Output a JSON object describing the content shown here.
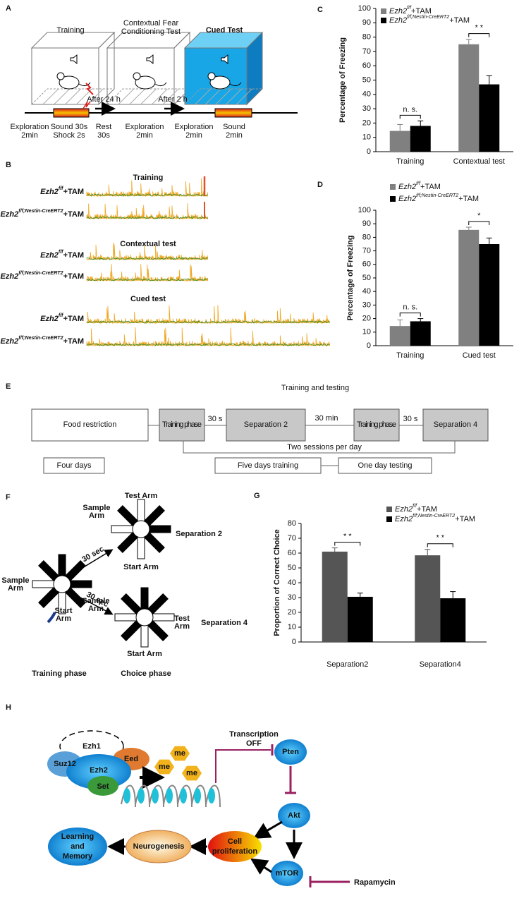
{
  "figure": {
    "panel_labels": [
      "A",
      "B",
      "C",
      "D",
      "E",
      "F",
      "G",
      "H"
    ],
    "a": {
      "boxes": [
        [
          "Training"
        ],
        [
          "Contextual Fear",
          "Conditioning Test"
        ],
        [
          "Cued Test"
        ]
      ],
      "timeline": [
        [
          "Exploration",
          "2min"
        ],
        [
          "Sound 30s",
          "Shock 2s"
        ],
        [
          "Rest",
          "30s"
        ],
        [
          "Exploration",
          "2min"
        ],
        [
          "Exploration",
          "2min"
        ],
        [
          "Sound",
          "2min"
        ]
      ],
      "delays": [
        "After 24 h",
        "After 2 h"
      ]
    },
    "b": {
      "rows": [
        {
          "section": "Training",
          "labels": [
            "Ezh2f/f+TAM",
            "Ezh2f/f;Nestin-CreERT2+TAM"
          ]
        },
        {
          "section": "Contextual test",
          "labels": [
            "Ezh2f/f+TAM",
            "Ezh2f/f;Nestin-CreERT2+TAM"
          ]
        },
        {
          "section": "Cued test",
          "labels": [
            "Ezh2f/f+TAM",
            "Ezh2f/f;Nestin-CreERT2+TAM"
          ]
        }
      ]
    },
    "e": {
      "title": "Training and testing",
      "boxes": [
        "Food restriction",
        "Training phase",
        "Separation 2",
        "Training phase",
        "Separation 4"
      ],
      "gaps": [
        "30 s",
        "30 min",
        "30 s"
      ],
      "sessions": "Two sessions per day",
      "durations": [
        "Four days",
        "Five days training",
        "One day testing"
      ]
    },
    "f": {
      "labels": [
        [
          "Test  Arm"
        ],
        [
          "Sample",
          "Arm"
        ],
        [
          "Sample",
          "Arm"
        ],
        [
          "Start  Arm"
        ],
        [
          "Sample",
          "Arm"
        ],
        [
          "Test",
          "Arm"
        ],
        [
          "Start",
          "Arm"
        ],
        [
          "Start  Arm"
        ]
      ],
      "arrows": [
        "30 sec",
        "30 sec"
      ],
      "separations": [
        "Separation 2",
        "Separation 4"
      ],
      "phases": [
        "Training  phase",
        "Choice phase"
      ]
    },
    "h": {
      "complex": [
        "Ezh1",
        "Eed",
        "Suz12",
        "Ezh2",
        "Set"
      ],
      "marks": [
        "me",
        "me",
        "me"
      ],
      "transcription": [
        "Transcription",
        "OFF"
      ],
      "nodes": [
        "Pten",
        "Akt",
        "mTOR"
      ],
      "drug": "Rapamycin",
      "outcomes": [
        [
          "Cell",
          "proliferation"
        ],
        [
          "Neurogenesis"
        ],
        [
          "Learning",
          "and",
          "Memory"
        ]
      ]
    }
  },
  "chart_data": [
    {
      "type": "bar",
      "ylabel": "Percentage of Freezing",
      "categories": [
        "Training",
        "Contextual test"
      ],
      "series": [
        {
          "name": "Ezh2f/f+TAM",
          "color": "#808080",
          "values": [
            14.5,
            75
          ],
          "errors": [
            4.5,
            3.5
          ]
        },
        {
          "name": "Ezh2f/f;Nestin-CreERT2+TAM",
          "color": "#000000",
          "values": [
            18,
            47
          ],
          "errors": [
            3.5,
            6
          ]
        }
      ],
      "ylim": [
        0,
        100
      ],
      "yticks": [
        0,
        10,
        20,
        30,
        40,
        50,
        60,
        70,
        80,
        90,
        100
      ],
      "annotations": [
        "n. s.",
        "* *"
      ]
    },
    {
      "type": "bar",
      "ylabel": "Percentage of Freezing",
      "categories": [
        "Training",
        "Cued test"
      ],
      "series": [
        {
          "name": "Ezh2f/f+TAM",
          "color": "#808080",
          "values": [
            14.5,
            85.5
          ],
          "errors": [
            4.5,
            2
          ]
        },
        {
          "name": "Ezh2f/f;Nestin-CreERT2+TAM",
          "color": "#000000",
          "values": [
            18,
            75
          ],
          "errors": [
            2,
            4.5
          ]
        }
      ],
      "ylim": [
        0,
        100
      ],
      "yticks": [
        0,
        10,
        20,
        30,
        40,
        50,
        60,
        70,
        80,
        90,
        100
      ],
      "annotations": [
        "n. s.",
        "*"
      ]
    },
    {
      "type": "bar",
      "ylabel": "Proportion of Correct Choice",
      "categories": [
        "Separation2",
        "Separation4"
      ],
      "series": [
        {
          "name": "Ezh2f/f+TAM",
          "color": "#555555",
          "values": [
            61,
            58.5
          ],
          "errors": [
            2.5,
            4
          ]
        },
        {
          "name": "Ezh2f/f;Nestin-CreERT2+TAM",
          "color": "#000000",
          "values": [
            30.5,
            29.5
          ],
          "errors": [
            2.5,
            4.5
          ]
        }
      ],
      "ylim": [
        0,
        80
      ],
      "yticks": [
        0,
        10,
        20,
        30,
        40,
        50,
        60,
        70,
        80
      ],
      "annotations": [
        "* *",
        "* *"
      ]
    }
  ]
}
